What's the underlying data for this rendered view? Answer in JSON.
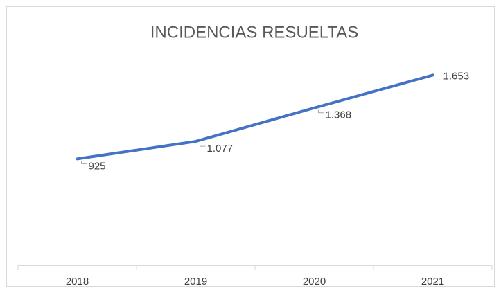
{
  "chart_data": {
    "type": "line",
    "title": "INCIDENCIAS RESUELTAS",
    "categories": [
      "2018",
      "2019",
      "2020",
      "2021"
    ],
    "series": [
      {
        "name": "Incidencias resueltas",
        "color": "#4472c4",
        "values": [
          925,
          1077,
          1368,
          1653
        ],
        "value_labels": [
          "925",
          "1.077",
          "1.368",
          "1.653"
        ]
      }
    ],
    "ylim": [
      0,
      1800
    ]
  }
}
